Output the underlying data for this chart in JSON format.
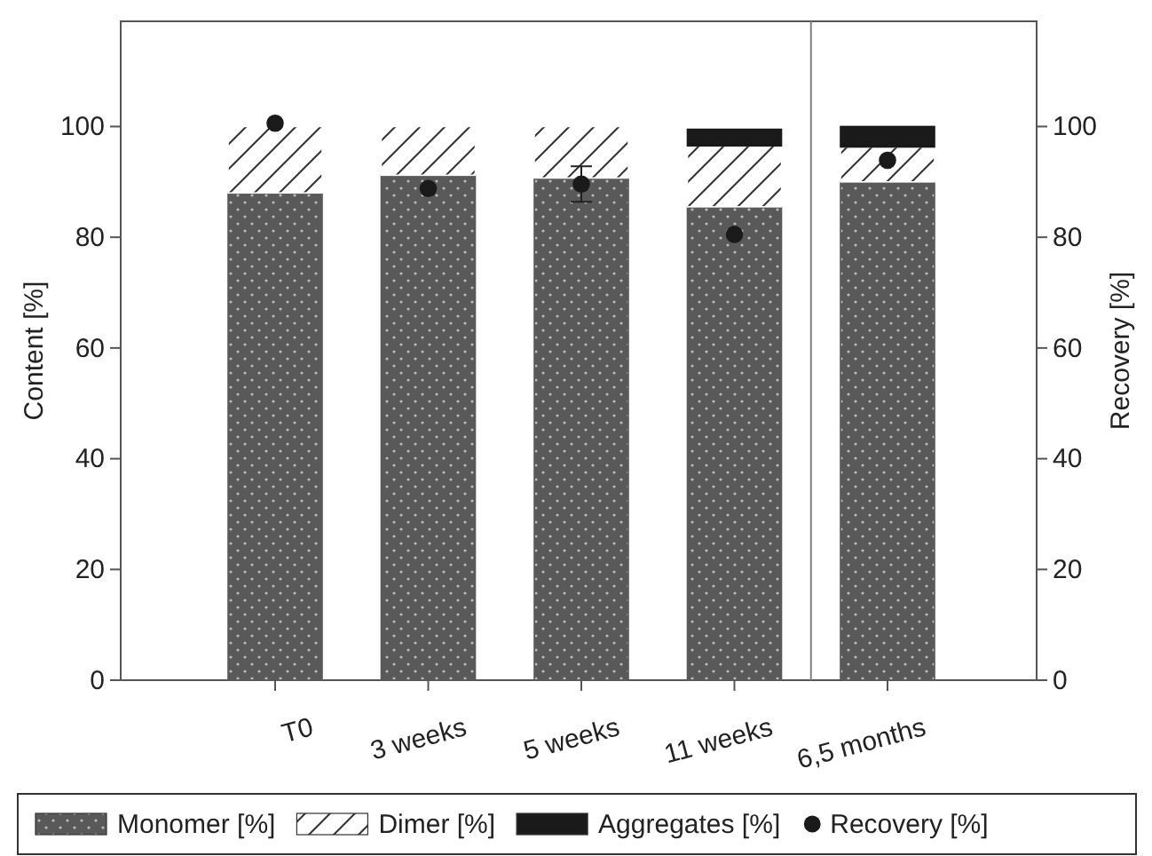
{
  "chart_data": {
    "type": "bar",
    "stacked": true,
    "ylabel": "Content [%]",
    "y2label": "Recovery [%]",
    "categories": [
      "T0",
      "3 weeks",
      "5 weeks",
      "11 weeks",
      "6,5 months"
    ],
    "series": [
      {
        "name": "Monomer [%]",
        "color": "#595959",
        "values": [
          88,
          91.2,
          90.7,
          85.5,
          90
        ]
      },
      {
        "name": "Dimer [%]",
        "color": "#ffffff",
        "values": [
          12,
          8.8,
          9.3,
          11,
          6.3
        ]
      },
      {
        "name": "Aggregates [%]",
        "color": "#1a1a1a",
        "values": [
          null,
          null,
          null,
          3,
          3.7
        ]
      },
      {
        "name": "Recovery [%]",
        "type": "scatter",
        "axis": "y2",
        "color": "#1a1a1a",
        "marker": "circle",
        "values": [
          100.6,
          88.8,
          89.6,
          80.5,
          93.9
        ],
        "errors": [
          null,
          null,
          3.2,
          null,
          null
        ]
      }
    ],
    "ylim": [
      0,
      119
    ],
    "yticks": [
      0,
      20,
      40,
      60,
      80,
      100
    ],
    "y2lim": [
      0,
      119
    ],
    "y2ticks": [
      0,
      20,
      40,
      60,
      80,
      100
    ],
    "grid": false,
    "legend": "bottom"
  }
}
